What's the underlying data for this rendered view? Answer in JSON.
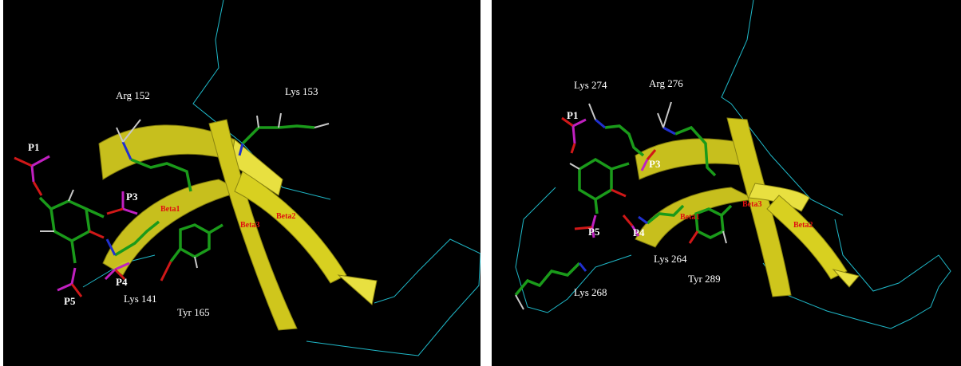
{
  "panels": {
    "left": {
      "residues": [
        "Arg 152",
        "Lys 153",
        "Lys 141",
        "Tyr 165"
      ],
      "phosphates": [
        "P1",
        "P3",
        "P4",
        "P5"
      ],
      "strands": [
        "Beta1",
        "Beta3",
        "Beta2"
      ]
    },
    "right": {
      "residues": [
        "Lys 274",
        "Arg 276",
        "Lys 264",
        "Tyr 289",
        "Lys 268"
      ],
      "phosphates": [
        "P1",
        "P3",
        "P5",
        "P4"
      ],
      "strands": [
        "Beta1",
        "Beta3",
        "Beta2"
      ]
    }
  },
  "colors": {
    "background": "#000000",
    "ribbon": "#d8d020",
    "backbone_trace": "#1fb8c8",
    "carbon": "#1a9a1a",
    "oxygen": "#d01818",
    "nitrogen": "#2030d0",
    "phosphorus": "#c020c0",
    "hydrogen": "#c8c8c8",
    "residue_label": "#ffffff",
    "strand_label": "#e01010"
  }
}
